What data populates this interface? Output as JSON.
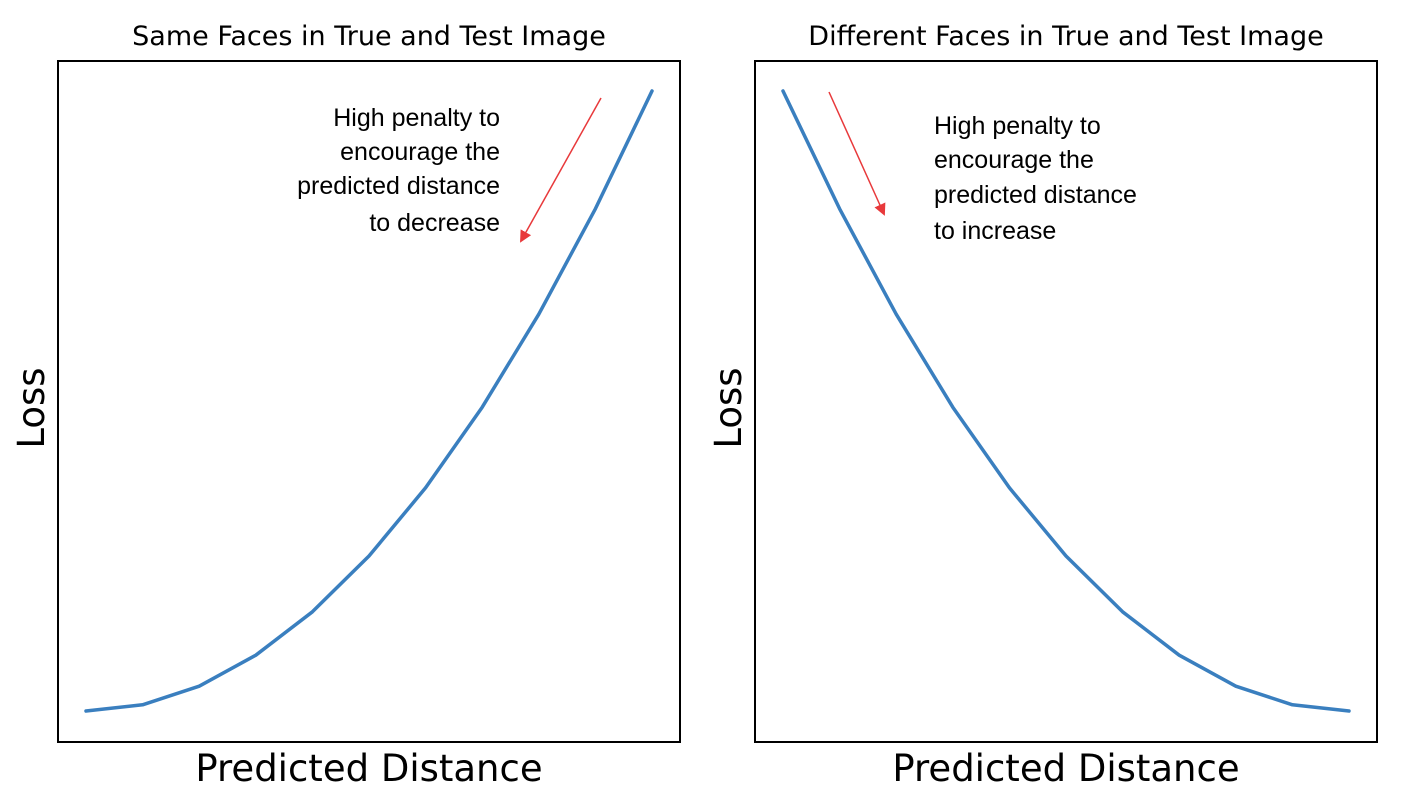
{
  "chart_data": [
    {
      "type": "line",
      "title": "Same Faces in True and Test Image",
      "xlabel": "Predicted Distance",
      "ylabel": "Loss",
      "xlim": [
        0,
        1
      ],
      "ylim": [
        0,
        1.1
      ],
      "grid": false,
      "ticks": false,
      "series": [
        {
          "color": "#3a7fbf",
          "x": [
            0,
            0.1,
            0.2,
            0.3,
            0.4,
            0.5,
            0.6,
            0.7,
            0.8,
            0.9,
            1.0
          ],
          "y": [
            0,
            0.01,
            0.04,
            0.09,
            0.16,
            0.25,
            0.36,
            0.49,
            0.64,
            0.81,
            1.0
          ]
        }
      ],
      "annotation": {
        "lines": [
          "High penalty to",
          "encourage the",
          "predicted distance",
          "to decrease"
        ],
        "text_align": "right",
        "arrow_color": "#e8393b",
        "arrow_direction": "down-left"
      }
    },
    {
      "type": "line",
      "title": "Different Faces in True and Test Image",
      "xlabel": "Predicted Distance",
      "ylabel": "Loss",
      "xlim": [
        0,
        1
      ],
      "ylim": [
        0,
        1.1
      ],
      "grid": false,
      "ticks": false,
      "series": [
        {
          "color": "#3a7fbf",
          "x": [
            0,
            0.1,
            0.2,
            0.3,
            0.4,
            0.5,
            0.6,
            0.7,
            0.8,
            0.9,
            1.0
          ],
          "y": [
            1.0,
            0.81,
            0.64,
            0.49,
            0.36,
            0.25,
            0.16,
            0.09,
            0.04,
            0.01,
            0
          ]
        }
      ],
      "annotation": {
        "lines": [
          "High penalty to",
          "encourage the",
          "predicted distance",
          "to increase"
        ],
        "text_align": "left",
        "arrow_color": "#e8393b",
        "arrow_direction": "down-right"
      }
    }
  ]
}
